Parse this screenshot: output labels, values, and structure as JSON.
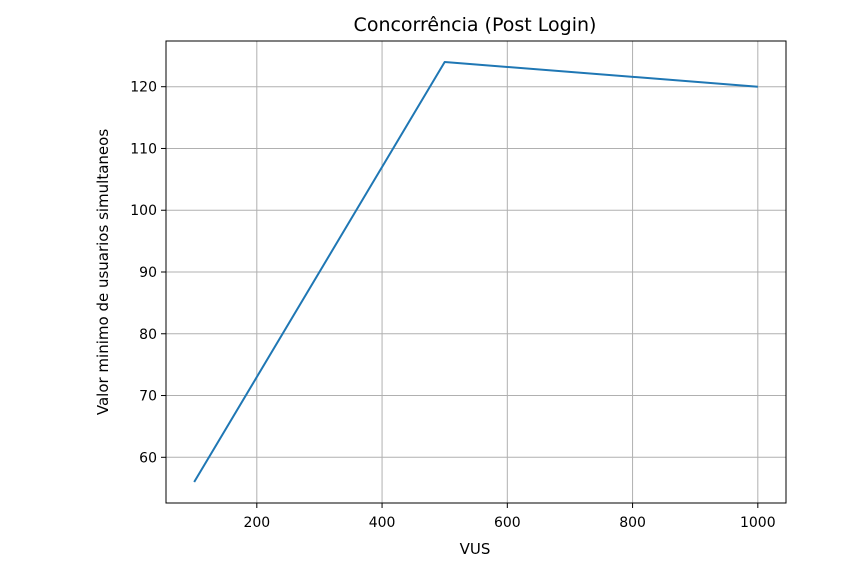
{
  "chart_data": {
    "type": "line",
    "title": "Concorrência (Post Login)",
    "xlabel": "VUS",
    "ylabel": "Valor minimo de usuarios simultaneos",
    "xlim": [
      55,
      1045
    ],
    "ylim": [
      52.6,
      127.4
    ],
    "xticks": [
      200,
      400,
      600,
      800,
      1000
    ],
    "yticks": [
      60,
      70,
      80,
      90,
      100,
      110,
      120
    ],
    "grid": true,
    "series": [
      {
        "x": [
          100,
          500,
          1000
        ],
        "y": [
          56,
          124,
          120
        ],
        "color": "#1f77b4"
      }
    ]
  }
}
